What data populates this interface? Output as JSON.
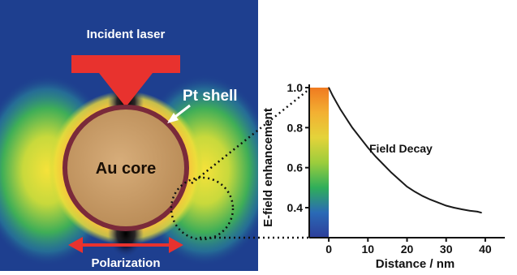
{
  "diagram": {
    "labels": {
      "incident_laser": "Incident laser",
      "pt_shell": "Pt shell",
      "au_core": "Au core",
      "polarization": "Polarization"
    },
    "colors": {
      "field_background": "#1e3f8f",
      "laser_arrow": "#e8322e",
      "shell": "#7a2a3a",
      "core": "#c59a6a",
      "annotation_text": "#ffffff"
    }
  },
  "chart_data": {
    "type": "line",
    "title": "",
    "xlabel": "Distance / nm",
    "ylabel": "E-field enhancement",
    "xlim": [
      -5,
      45
    ],
    "ylim": [
      0.25,
      1.0
    ],
    "x_ticks": [
      0,
      10,
      20,
      30,
      40
    ],
    "y_ticks": [
      0.4,
      0.6,
      0.8,
      1.0
    ],
    "y_tick_labels": [
      "0.4",
      "0.6",
      "0.8",
      "1.0"
    ],
    "colorbar": {
      "x_range": [
        -5,
        0
      ],
      "stops": [
        "#f07a20",
        "#f3b032",
        "#e4d33a",
        "#9ccd3c",
        "#2fae5a",
        "#2a6ab6",
        "#2d3e9a"
      ]
    },
    "annotation": "Field Decay",
    "series": [
      {
        "x": [
          0,
          1,
          2,
          3,
          4,
          5,
          6,
          8,
          10,
          12,
          14,
          16,
          18,
          20,
          22,
          24,
          26,
          28,
          30,
          32,
          34,
          36,
          38,
          39
        ],
        "values": [
          1.0,
          0.96,
          0.925,
          0.89,
          0.86,
          0.83,
          0.8,
          0.75,
          0.7,
          0.655,
          0.615,
          0.575,
          0.54,
          0.505,
          0.48,
          0.458,
          0.44,
          0.425,
          0.41,
          0.4,
          0.392,
          0.385,
          0.38,
          0.375
        ]
      }
    ]
  }
}
